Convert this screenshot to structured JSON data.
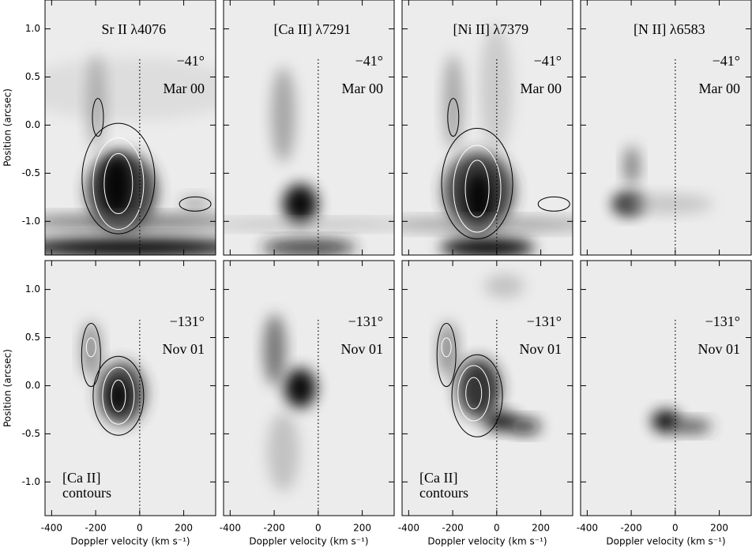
{
  "chart_data": {
    "type": "image-grid",
    "xlabel": "Doppler velocity (km s⁻¹)",
    "ylabel": "Position (arcsec)",
    "xlim": [
      -430,
      345
    ],
    "ylim": [
      -1.35,
      1.3
    ],
    "xticks": [
      -400,
      -200,
      0,
      200
    ],
    "yticks": [
      {
        "value": -1,
        "label": "-1.0"
      },
      {
        "value": -0.5,
        "label": "-0.5"
      },
      {
        "value": 0,
        "label": "0.0"
      },
      {
        "value": 0.5,
        "label": "0.5"
      },
      {
        "value": 1,
        "label": "1.0"
      }
    ],
    "reference_line": 0,
    "panels": [
      {
        "line": "Sr II λ4076",
        "angle": "−41°",
        "epoch": "Mar 00"
      },
      {
        "line": "[Ca II] λ7291",
        "angle": "−41°",
        "epoch": "Mar 00"
      },
      {
        "line": "[Ni II] λ7379",
        "angle": "−41°",
        "epoch": "Mar 00"
      },
      {
        "line": "[N II] λ6583",
        "angle": "−41°",
        "epoch": "Mar 00"
      },
      {
        "angle": "−131°",
        "epoch": "Nov 01",
        "note": [
          "[Ca II]",
          "contours"
        ]
      },
      {
        "angle": "−131°",
        "epoch": "Nov 01"
      },
      {
        "angle": "−131°",
        "epoch": "Nov 01",
        "note": [
          "[Ca II]",
          "contours"
        ]
      },
      {
        "angle": "−131°",
        "epoch": "Nov 01"
      }
    ]
  }
}
